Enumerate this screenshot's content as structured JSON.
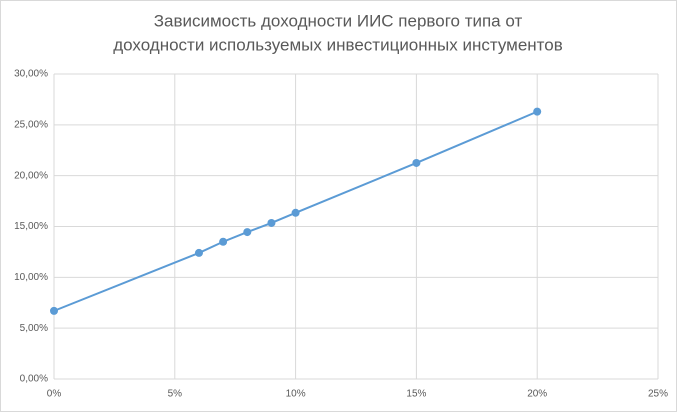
{
  "chart_data": {
    "type": "line",
    "title": [
      "Зависимость доходности ИИС первого типа от",
      "доходности используемых инвестиционных инстументов"
    ],
    "x": [
      0,
      6,
      7,
      8,
      9,
      10,
      15,
      20
    ],
    "series": [
      {
        "color": "#5b9bd5",
        "values": [
          6.7,
          12.4,
          13.5,
          14.45,
          15.35,
          16.35,
          21.25,
          26.3
        ]
      }
    ],
    "xlim": [
      0,
      25
    ],
    "xticks": [
      {
        "value": 0,
        "label": "0%"
      },
      {
        "value": 5,
        "label": "5%"
      },
      {
        "value": 10,
        "label": "10%"
      },
      {
        "value": 15,
        "label": "15%"
      },
      {
        "value": 20,
        "label": "20%"
      },
      {
        "value": 25,
        "label": "25%"
      }
    ],
    "ylim": [
      0,
      30
    ],
    "yticks": [
      {
        "value": 0,
        "label": "0,00%"
      },
      {
        "value": 5,
        "label": "5,00%"
      },
      {
        "value": 10,
        "label": "10,00%"
      },
      {
        "value": 15,
        "label": "15,00%"
      },
      {
        "value": 20,
        "label": "20,00%"
      },
      {
        "value": 25,
        "label": "25,00%"
      },
      {
        "value": 30,
        "label": "30,00%"
      }
    ],
    "grid": true
  }
}
